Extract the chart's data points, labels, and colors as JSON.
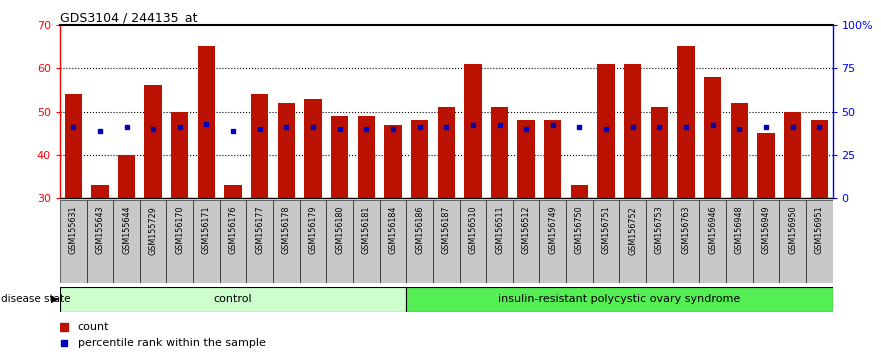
{
  "title": "GDS3104 / 244135_at",
  "samples": [
    "GSM155631",
    "GSM155643",
    "GSM155644",
    "GSM155729",
    "GSM156170",
    "GSM156171",
    "GSM156176",
    "GSM156177",
    "GSM156178",
    "GSM156179",
    "GSM156180",
    "GSM156181",
    "GSM156184",
    "GSM156186",
    "GSM156187",
    "GSM156510",
    "GSM156511",
    "GSM156512",
    "GSM156749",
    "GSM156750",
    "GSM156751",
    "GSM156752",
    "GSM156753",
    "GSM156763",
    "GSM156946",
    "GSM156948",
    "GSM156949",
    "GSM156950",
    "GSM156951"
  ],
  "counts": [
    54,
    33,
    40,
    56,
    50,
    65,
    33,
    54,
    52,
    53,
    49,
    49,
    47,
    48,
    51,
    61,
    51,
    48,
    48,
    33,
    61,
    61,
    51,
    65,
    58,
    52,
    45,
    50,
    48
  ],
  "percentile_vals": [
    41,
    39,
    41,
    40,
    41,
    43,
    39,
    40,
    41,
    41,
    40,
    40,
    40,
    41,
    41,
    42,
    42,
    40,
    42,
    41,
    40,
    41,
    41,
    41,
    42,
    40,
    41,
    41,
    41
  ],
  "control_count": 13,
  "disease_count": 16,
  "ylim_left": [
    30,
    70
  ],
  "ylim_right": [
    0,
    100
  ],
  "bar_color": "#BB1100",
  "percentile_color": "#0000BB",
  "control_color_light": "#CCFFCC",
  "control_color_dark": "#55DD55",
  "disease_color_light": "#AAFFAA",
  "disease_color_dark": "#44CC44",
  "bg_tick_color": "#CCCCCC",
  "control_label": "control",
  "disease_label": "insulin-resistant polycystic ovary syndrome",
  "disease_state_label": "disease state",
  "legend_count_label": "count",
  "legend_percentile_label": "percentile rank within the sample",
  "yticks_left": [
    30,
    40,
    50,
    60,
    70
  ],
  "yticks_right": [
    0,
    25,
    50,
    75,
    100
  ],
  "ytick_right_labels": [
    "0",
    "25",
    "50",
    "75",
    "100%"
  ]
}
